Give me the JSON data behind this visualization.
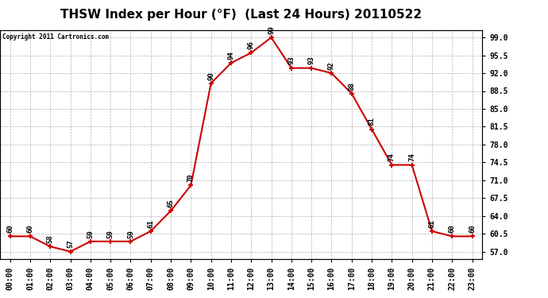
{
  "title": "THSW Index per Hour (°F)  (Last 24 Hours) 20110522",
  "copyright": "Copyright 2011 Cartronics.com",
  "hours": [
    0,
    1,
    2,
    3,
    4,
    5,
    6,
    7,
    8,
    9,
    10,
    11,
    12,
    13,
    14,
    15,
    16,
    17,
    18,
    19,
    20,
    21,
    22,
    23
  ],
  "values": [
    60,
    60,
    58,
    57,
    59,
    59,
    59,
    61,
    65,
    70,
    90,
    94,
    96,
    99,
    93,
    93,
    92,
    88,
    81,
    74,
    74,
    61,
    60,
    60
  ],
  "x_labels": [
    "00:00",
    "01:00",
    "02:00",
    "03:00",
    "04:00",
    "05:00",
    "06:00",
    "07:00",
    "08:00",
    "09:00",
    "10:00",
    "11:00",
    "12:00",
    "13:00",
    "14:00",
    "15:00",
    "16:00",
    "17:00",
    "18:00",
    "19:00",
    "20:00",
    "21:00",
    "22:00",
    "23:00"
  ],
  "y_ticks": [
    57.0,
    60.5,
    64.0,
    67.5,
    71.0,
    74.5,
    78.0,
    81.5,
    85.0,
    88.5,
    92.0,
    95.5,
    99.0
  ],
  "y_min": 55.5,
  "y_max": 100.5,
  "line_color": "#cc0000",
  "marker_color": "#cc0000",
  "bg_color": "#ffffff",
  "grid_color": "#aaaaaa",
  "title_fontsize": 11,
  "tick_fontsize": 7,
  "annotation_fontsize": 6.5
}
